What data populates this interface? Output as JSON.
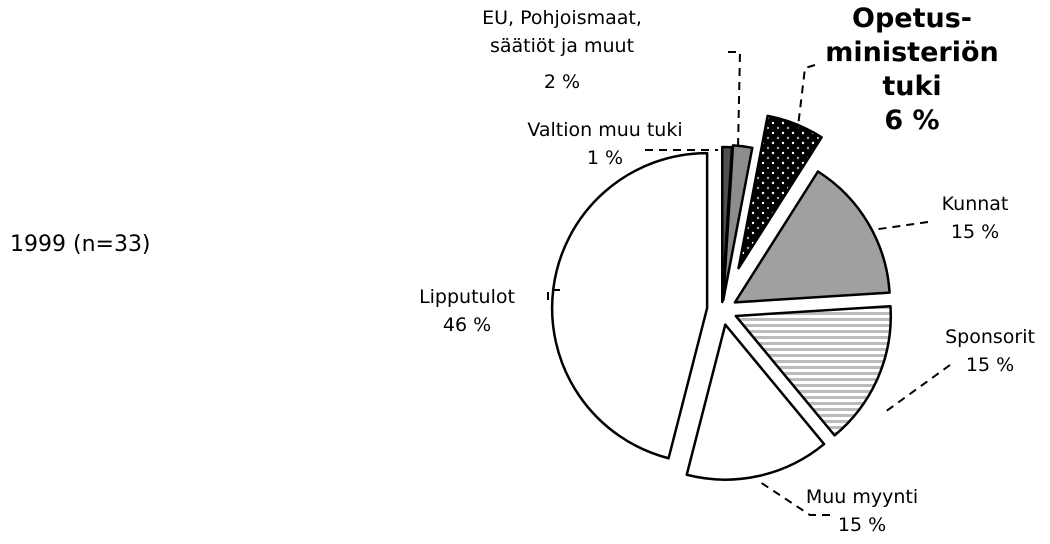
{
  "chart_data": {
    "type": "pie",
    "title": "1999 (n=33)",
    "categories": [
      "Valtion muu tuki",
      "EU, Pohjoismaat,\nsäätiöt ja muut",
      "Opetus-\nministeriön\ntuki",
      "Kunnat",
      "Sponsorit",
      "Muu myynti",
      "Lipputulot"
    ],
    "values": [
      1,
      2,
      6,
      15,
      15,
      15,
      46
    ],
    "value_labels": [
      "1 %",
      "2 %",
      "6 %",
      "15 %",
      "15 %",
      "15 %",
      "46 %"
    ],
    "colors": [
      "#505050",
      "#8c8c8c",
      "#000000",
      "#a0a0a0",
      "#ffffff",
      "#ffffff",
      "#ffffff"
    ],
    "patterns": [
      "none",
      "none",
      "dots",
      "none",
      "stripes",
      "none",
      "none"
    ]
  }
}
